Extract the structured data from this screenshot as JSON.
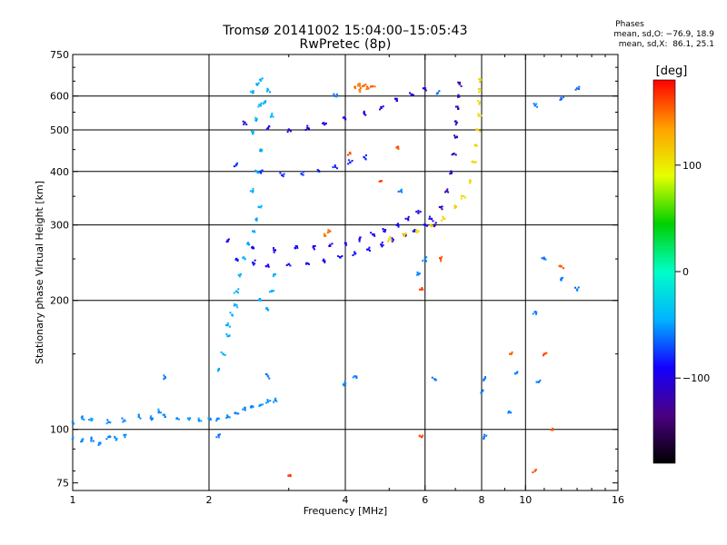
{
  "header": {
    "title": "Tromsø 20141002 15:04:00–15:05:43",
    "subtitle": "RwPretec (8p)"
  },
  "stats": {
    "heading": "Phases",
    "line_o": "mean, sd,O: −76.9, 18.9",
    "line_x": "mean, sd,X:  86.1, 25.1"
  },
  "colorbar": {
    "title": "[deg]",
    "min": -180,
    "max": 180,
    "ticks": [
      {
        "value": 100,
        "label": "100"
      },
      {
        "value": 0,
        "label": "0"
      },
      {
        "value": -100,
        "label": "−100"
      }
    ],
    "colors": [
      "#000000",
      "#4b0082",
      "#1400ff",
      "#00b4ff",
      "#00ffc8",
      "#00d000",
      "#e6ff00",
      "#ffa000",
      "#ff0000"
    ]
  },
  "chart_data": {
    "type": "scatter",
    "xlabel": "Frequency [MHz]",
    "ylabel": "Stationary phase Virtual Height [km]",
    "x_scale": "log",
    "y_scale": "log",
    "xlim": [
      1,
      16
    ],
    "ylim": [
      72,
      750
    ],
    "x_ticks": [
      {
        "value": 1,
        "label": "1"
      },
      {
        "value": 2,
        "label": "2"
      },
      {
        "value": 4,
        "label": "4"
      },
      {
        "value": 6,
        "label": "6"
      },
      {
        "value": 8,
        "label": "8"
      },
      {
        "value": 10,
        "label": "10"
      },
      {
        "value": 16,
        "label": "16"
      }
    ],
    "y_ticks": [
      {
        "value": 75,
        "label": "75"
      },
      {
        "value": 100,
        "label": "100"
      },
      {
        "value": 200,
        "label": "200"
      },
      {
        "value": 300,
        "label": "300"
      },
      {
        "value": 400,
        "label": "400"
      },
      {
        "value": 500,
        "label": "500"
      },
      {
        "value": 600,
        "label": "600"
      },
      {
        "value": 750,
        "label": "750"
      }
    ],
    "x_grid": [
      2,
      4,
      6,
      8,
      10
    ],
    "y_grid": [
      100,
      200,
      300,
      400,
      500,
      600
    ],
    "grid": true,
    "series": [
      {
        "points": [
          [
            1.0,
            95
          ],
          [
            1.05,
            94
          ],
          [
            1.1,
            95
          ],
          [
            1.15,
            93
          ],
          [
            1.2,
            96
          ],
          [
            1.25,
            95
          ],
          [
            1.3,
            97
          ]
        ],
        "phase": -55
      },
      {
        "points": [
          [
            1.0,
            104
          ],
          [
            1.05,
            106
          ],
          [
            1.1,
            105
          ],
          [
            1.2,
            104
          ],
          [
            1.3,
            105
          ],
          [
            1.4,
            107
          ],
          [
            1.5,
            106
          ],
          [
            1.55,
            110
          ],
          [
            1.6,
            107
          ],
          [
            1.7,
            106
          ],
          [
            1.8,
            106
          ],
          [
            1.9,
            105
          ],
          [
            2.0,
            106
          ],
          [
            2.1,
            106
          ],
          [
            2.2,
            107
          ],
          [
            2.3,
            109
          ],
          [
            2.4,
            112
          ],
          [
            2.5,
            113
          ],
          [
            2.6,
            114
          ],
          [
            2.7,
            116
          ],
          [
            2.8,
            117
          ]
        ],
        "phase": -55
      },
      {
        "points": [
          [
            2.1,
            138
          ],
          [
            2.15,
            150
          ],
          [
            2.2,
            165
          ],
          [
            2.2,
            175
          ],
          [
            2.25,
            185
          ],
          [
            2.3,
            195
          ],
          [
            2.3,
            210
          ],
          [
            2.35,
            230
          ],
          [
            2.4,
            250
          ],
          [
            2.45,
            270
          ],
          [
            2.5,
            290
          ],
          [
            2.55,
            310
          ],
          [
            2.6,
            330
          ],
          [
            2.5,
            360
          ],
          [
            2.55,
            400
          ],
          [
            2.6,
            450
          ],
          [
            2.5,
            490
          ],
          [
            2.55,
            530
          ],
          [
            2.6,
            570
          ],
          [
            2.5,
            610
          ],
          [
            2.55,
            640
          ],
          [
            2.6,
            655
          ],
          [
            2.7,
            620
          ],
          [
            2.65,
            580
          ],
          [
            2.75,
            540
          ],
          [
            2.6,
            200
          ],
          [
            2.7,
            190
          ],
          [
            2.75,
            210
          ],
          [
            2.8,
            230
          ]
        ],
        "phase": -45
      },
      {
        "points": [
          [
            2.3,
            250
          ],
          [
            2.5,
            245
          ],
          [
            2.7,
            242
          ],
          [
            3.0,
            243
          ],
          [
            3.3,
            244
          ],
          [
            3.6,
            247
          ],
          [
            3.9,
            252
          ],
          [
            4.2,
            257
          ],
          [
            4.5,
            263
          ],
          [
            4.8,
            270
          ],
          [
            5.1,
            277
          ],
          [
            5.4,
            284
          ],
          [
            5.7,
            292
          ],
          [
            6.0,
            300
          ],
          [
            6.2,
            310
          ]
        ],
        "phase": -90
      },
      {
        "points": [
          [
            2.2,
            275
          ],
          [
            2.5,
            265
          ],
          [
            2.8,
            262
          ],
          [
            3.1,
            265
          ],
          [
            3.4,
            266
          ],
          [
            3.7,
            268
          ],
          [
            4.0,
            272
          ],
          [
            4.3,
            278
          ],
          [
            4.6,
            285
          ],
          [
            4.9,
            292
          ],
          [
            5.2,
            300
          ],
          [
            5.5,
            310
          ],
          [
            5.8,
            320
          ]
        ],
        "phase": -95
      },
      {
        "points": [
          [
            2.3,
            415
          ],
          [
            2.6,
            400
          ],
          [
            2.9,
            392
          ],
          [
            3.2,
            395
          ],
          [
            3.5,
            400
          ],
          [
            3.8,
            410
          ],
          [
            4.1,
            420
          ],
          [
            4.4,
            432
          ]
        ],
        "phase": -80
      },
      {
        "points": [
          [
            2.4,
            520
          ],
          [
            2.7,
            505
          ],
          [
            3.0,
            500
          ],
          [
            3.3,
            505
          ],
          [
            3.6,
            515
          ],
          [
            4.0,
            530
          ],
          [
            4.4,
            548
          ],
          [
            4.8,
            565
          ],
          [
            5.2,
            585
          ],
          [
            5.6,
            605
          ],
          [
            6.0,
            625
          ]
        ],
        "phase": -100
      },
      {
        "points": [
          [
            6.3,
            300
          ],
          [
            6.5,
            330
          ],
          [
            6.7,
            360
          ],
          [
            6.85,
            400
          ],
          [
            6.95,
            440
          ],
          [
            7.0,
            480
          ],
          [
            7.05,
            520
          ],
          [
            7.1,
            560
          ],
          [
            7.12,
            600
          ],
          [
            7.15,
            640
          ]
        ],
        "phase": -115
      },
      {
        "points": [
          [
            5.0,
            278
          ],
          [
            5.4,
            283
          ],
          [
            5.8,
            290
          ],
          [
            6.2,
            298
          ],
          [
            6.6,
            310
          ],
          [
            7.0,
            330
          ],
          [
            7.3,
            350
          ],
          [
            7.55,
            380
          ],
          [
            7.7,
            420
          ],
          [
            7.8,
            460
          ],
          [
            7.85,
            500
          ],
          [
            7.9,
            540
          ],
          [
            7.92,
            580
          ],
          [
            7.95,
            620
          ],
          [
            7.96,
            655
          ]
        ],
        "phase": 110
      },
      {
        "points": [
          [
            4.2,
            630
          ],
          [
            4.3,
            640
          ],
          [
            4.4,
            635
          ],
          [
            4.5,
            625
          ],
          [
            4.6,
            632
          ],
          [
            4.3,
            620
          ],
          [
            3.6,
            285
          ],
          [
            3.7,
            290
          ]
        ],
        "phase": 150
      },
      {
        "points": [
          [
            1.6,
            132
          ],
          [
            2.7,
            133
          ],
          [
            2.1,
            97
          ],
          [
            4.0,
            128
          ],
          [
            4.2,
            133
          ],
          [
            6.3,
            131
          ],
          [
            8.0,
            122
          ],
          [
            8.1,
            131
          ],
          [
            10.5,
            188
          ],
          [
            10.7,
            129
          ],
          [
            11.0,
            250
          ],
          [
            12.0,
            225
          ],
          [
            13.0,
            212
          ],
          [
            8.1,
            96
          ],
          [
            9.2,
            110
          ],
          [
            9.5,
            135
          ],
          [
            10.5,
            570
          ],
          [
            12.0,
            590
          ],
          [
            6.0,
            250
          ],
          [
            5.8,
            230
          ],
          [
            6.4,
            610
          ],
          [
            13.0,
            625
          ],
          [
            3.8,
            600
          ],
          [
            5.3,
            360
          ]
        ],
        "phase": -60
      },
      {
        "points": [
          [
            3.0,
            78
          ],
          [
            5.9,
            96
          ],
          [
            10.5,
            80
          ],
          [
            11.5,
            100
          ],
          [
            11.0,
            150
          ],
          [
            12.0,
            240
          ],
          [
            9.3,
            150
          ],
          [
            6.5,
            250
          ],
          [
            4.8,
            380
          ],
          [
            5.2,
            455
          ],
          [
            5.9,
            212
          ],
          [
            4.1,
            440
          ]
        ],
        "phase": 160
      }
    ]
  }
}
